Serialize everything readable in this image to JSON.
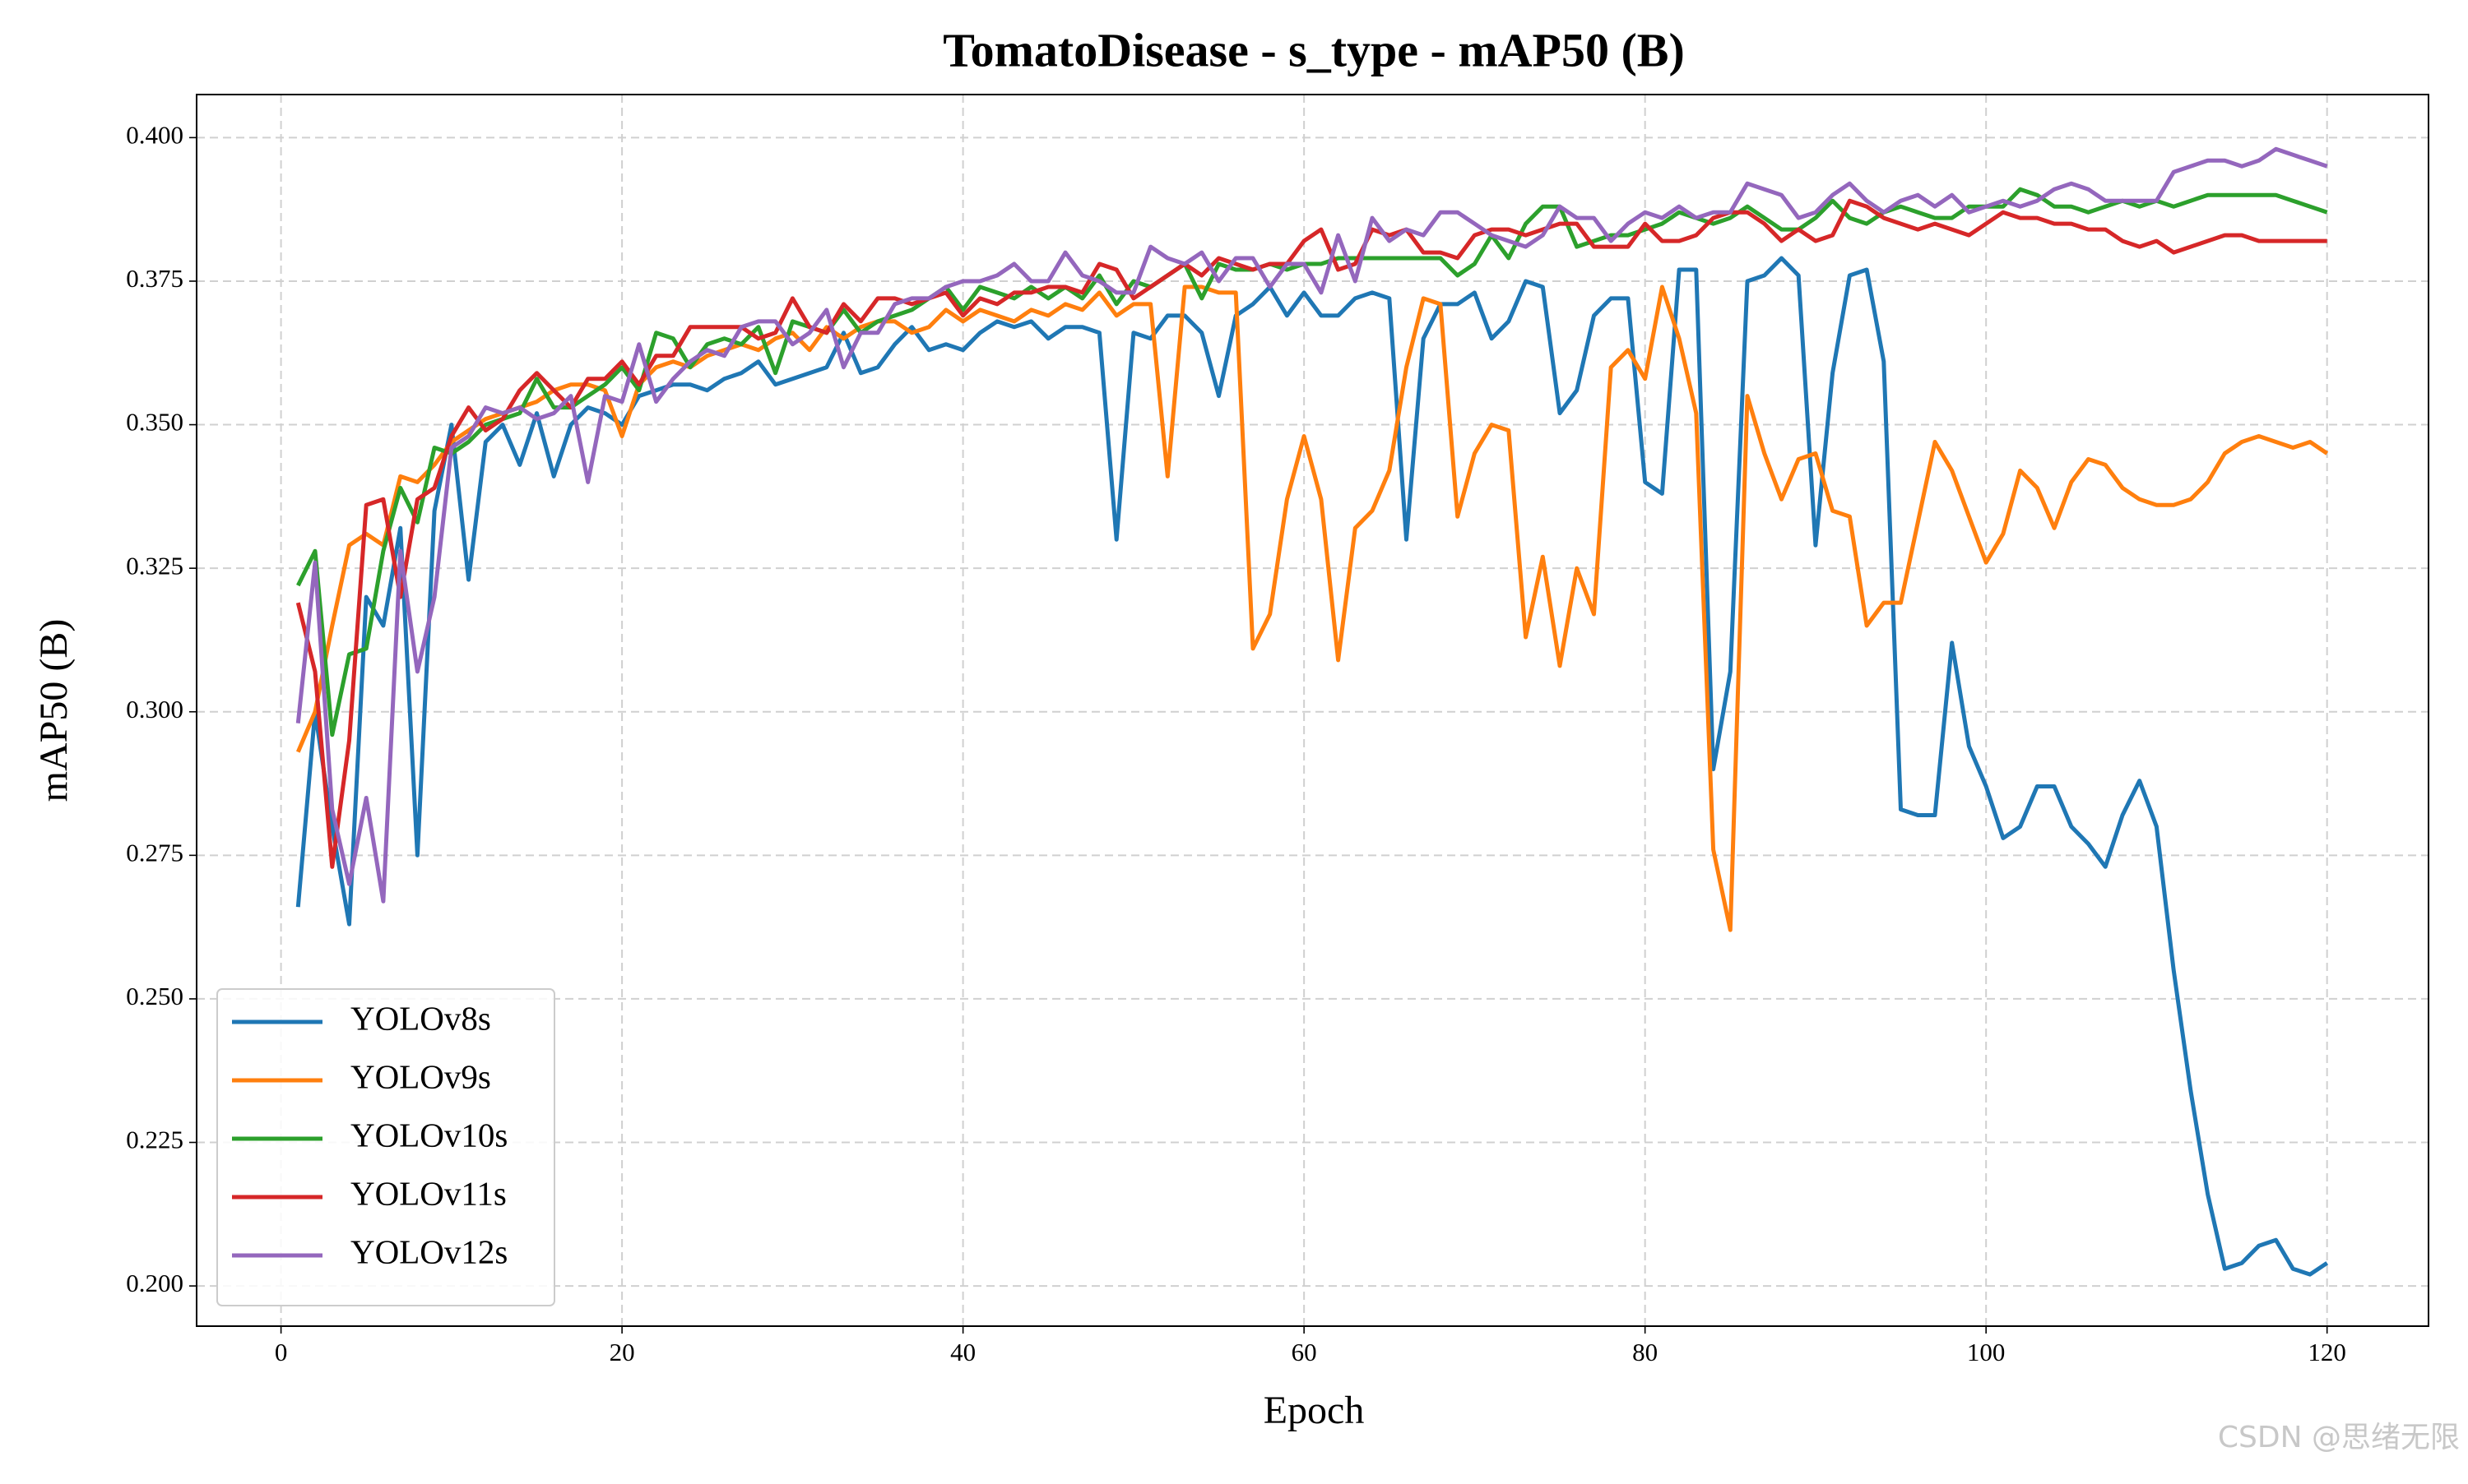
{
  "chart_data": {
    "type": "line",
    "title": "TomatoDisease - s_type - mAP50 (B)",
    "x_label": "Epoch",
    "y_label": "mAP50 (B)",
    "watermark": "CSDN @思绪无限",
    "grid": true,
    "legend": "lower left",
    "xlim": [
      -4.95,
      125.95
    ],
    "ylim": [
      0.193,
      0.4075
    ],
    "xticks": [
      0,
      20,
      40,
      60,
      80,
      100,
      120
    ],
    "yticks": [
      {
        "value": 0.2,
        "label": "0.200"
      },
      {
        "value": 0.225,
        "label": "0.225"
      },
      {
        "value": 0.25,
        "label": "0.250"
      },
      {
        "value": 0.275,
        "label": "0.275"
      },
      {
        "value": 0.3,
        "label": "0.300"
      },
      {
        "value": 0.325,
        "label": "0.325"
      },
      {
        "value": 0.35,
        "label": "0.350"
      },
      {
        "value": 0.375,
        "label": "0.375"
      },
      {
        "value": 0.4,
        "label": "0.400"
      }
    ],
    "x": [
      1,
      2,
      3,
      4,
      5,
      6,
      7,
      8,
      9,
      10,
      11,
      12,
      13,
      14,
      15,
      16,
      17,
      18,
      19,
      20,
      21,
      22,
      23,
      24,
      25,
      26,
      27,
      28,
      29,
      30,
      31,
      32,
      33,
      34,
      35,
      36,
      37,
      38,
      39,
      40,
      41,
      42,
      43,
      44,
      45,
      46,
      47,
      48,
      49,
      50,
      51,
      52,
      53,
      54,
      55,
      56,
      57,
      58,
      59,
      60,
      61,
      62,
      63,
      64,
      65,
      66,
      67,
      68,
      69,
      70,
      71,
      72,
      73,
      74,
      75,
      76,
      77,
      78,
      79,
      80,
      81,
      82,
      83,
      84,
      85,
      86,
      87,
      88,
      89,
      90,
      91,
      92,
      93,
      94,
      95,
      96,
      97,
      98,
      99,
      100,
      101,
      102,
      103,
      104,
      105,
      106,
      107,
      108,
      109,
      110,
      111,
      112,
      113,
      114,
      115,
      116,
      117,
      118,
      119,
      120
    ],
    "series": [
      {
        "name": "YOLOv8s",
        "color": "#1f77b4",
        "values": [
          0.266,
          0.3,
          0.28,
          0.263,
          0.32,
          0.315,
          0.332,
          0.275,
          0.335,
          0.35,
          0.323,
          0.347,
          0.35,
          0.343,
          0.352,
          0.341,
          0.35,
          0.353,
          0.352,
          0.35,
          0.355,
          0.356,
          0.357,
          0.357,
          0.356,
          0.358,
          0.359,
          0.361,
          0.357,
          0.358,
          0.359,
          0.36,
          0.366,
          0.359,
          0.36,
          0.364,
          0.367,
          0.363,
          0.364,
          0.363,
          0.366,
          0.368,
          0.367,
          0.368,
          0.365,
          0.367,
          0.367,
          0.366,
          0.33,
          0.366,
          0.365,
          0.369,
          0.369,
          0.366,
          0.355,
          0.369,
          0.371,
          0.374,
          0.369,
          0.373,
          0.369,
          0.369,
          0.372,
          0.373,
          0.372,
          0.33,
          0.365,
          0.371,
          0.371,
          0.373,
          0.365,
          0.368,
          0.375,
          0.374,
          0.352,
          0.356,
          0.369,
          0.372,
          0.372,
          0.34,
          0.338,
          0.377,
          0.377,
          0.29,
          0.307,
          0.375,
          0.376,
          0.379,
          0.376,
          0.329,
          0.359,
          0.376,
          0.377,
          0.361,
          0.283,
          0.282,
          0.282,
          0.312,
          0.294,
          0.287,
          0.278,
          0.28,
          0.287,
          0.287,
          0.28,
          0.277,
          0.273,
          0.282,
          0.288,
          0.28,
          0.255,
          0.234,
          0.216,
          0.203,
          0.204,
          0.207,
          0.208,
          0.203,
          0.202,
          0.204
        ]
      },
      {
        "name": "YOLOv9s",
        "color": "#ff7f0e",
        "values": [
          0.293,
          0.3,
          0.315,
          0.329,
          0.331,
          0.329,
          0.341,
          0.34,
          0.343,
          0.347,
          0.349,
          0.351,
          0.352,
          0.353,
          0.354,
          0.356,
          0.357,
          0.357,
          0.356,
          0.348,
          0.357,
          0.36,
          0.361,
          0.36,
          0.362,
          0.363,
          0.364,
          0.363,
          0.365,
          0.366,
          0.363,
          0.367,
          0.365,
          0.367,
          0.368,
          0.368,
          0.366,
          0.367,
          0.37,
          0.368,
          0.37,
          0.369,
          0.368,
          0.37,
          0.369,
          0.371,
          0.37,
          0.373,
          0.369,
          0.371,
          0.371,
          0.341,
          0.374,
          0.374,
          0.373,
          0.373,
          0.311,
          0.317,
          0.337,
          0.348,
          0.337,
          0.309,
          0.332,
          0.335,
          0.342,
          0.36,
          0.372,
          0.371,
          0.334,
          0.345,
          0.35,
          0.349,
          0.313,
          0.327,
          0.308,
          0.325,
          0.317,
          0.36,
          0.363,
          0.358,
          0.374,
          0.365,
          0.352,
          0.276,
          0.262,
          0.355,
          0.345,
          0.337,
          0.344,
          0.345,
          0.335,
          0.334,
          0.315,
          0.319,
          0.319,
          0.333,
          0.347,
          0.342,
          0.334,
          0.326,
          0.331,
          0.342,
          0.339,
          0.332,
          0.34,
          0.344,
          0.343,
          0.339,
          0.337,
          0.336,
          0.336,
          0.337,
          0.34,
          0.345,
          0.347,
          0.348,
          0.347,
          0.346,
          0.347,
          0.345
        ]
      },
      {
        "name": "YOLOv10s",
        "color": "#2ca02c",
        "values": [
          0.322,
          0.328,
          0.296,
          0.31,
          0.311,
          0.328,
          0.339,
          0.333,
          0.346,
          0.345,
          0.347,
          0.35,
          0.351,
          0.352,
          0.358,
          0.353,
          0.353,
          0.355,
          0.357,
          0.36,
          0.356,
          0.366,
          0.365,
          0.36,
          0.364,
          0.365,
          0.364,
          0.367,
          0.359,
          0.368,
          0.367,
          0.366,
          0.37,
          0.366,
          0.368,
          0.369,
          0.37,
          0.372,
          0.374,
          0.37,
          0.374,
          0.373,
          0.372,
          0.374,
          0.372,
          0.374,
          0.372,
          0.376,
          0.371,
          0.375,
          0.374,
          0.376,
          0.378,
          0.372,
          0.378,
          0.377,
          0.377,
          0.378,
          0.377,
          0.378,
          0.378,
          0.379,
          0.379,
          0.379,
          0.379,
          0.379,
          0.379,
          0.379,
          0.376,
          0.378,
          0.383,
          0.379,
          0.385,
          0.388,
          0.388,
          0.381,
          0.382,
          0.383,
          0.383,
          0.384,
          0.385,
          0.387,
          0.386,
          0.385,
          0.386,
          0.388,
          0.386,
          0.384,
          0.384,
          0.386,
          0.389,
          0.386,
          0.385,
          0.387,
          0.388,
          0.387,
          0.386,
          0.386,
          0.388,
          0.388,
          0.388,
          0.391,
          0.39,
          0.388,
          0.388,
          0.387,
          0.388,
          0.389,
          0.388,
          0.389,
          0.388,
          0.389,
          0.39,
          0.39,
          0.39,
          0.39,
          0.39,
          0.389,
          0.388,
          0.387
        ]
      },
      {
        "name": "YOLOv11s",
        "color": "#d62728",
        "values": [
          0.319,
          0.307,
          0.273,
          0.295,
          0.336,
          0.337,
          0.32,
          0.337,
          0.339,
          0.348,
          0.353,
          0.349,
          0.351,
          0.356,
          0.359,
          0.356,
          0.353,
          0.358,
          0.358,
          0.361,
          0.357,
          0.362,
          0.362,
          0.367,
          0.367,
          0.367,
          0.367,
          0.365,
          0.366,
          0.372,
          0.367,
          0.366,
          0.371,
          0.368,
          0.372,
          0.372,
          0.371,
          0.372,
          0.373,
          0.369,
          0.372,
          0.371,
          0.373,
          0.373,
          0.374,
          0.374,
          0.373,
          0.378,
          0.377,
          0.372,
          0.374,
          0.376,
          0.378,
          0.376,
          0.379,
          0.378,
          0.377,
          0.378,
          0.378,
          0.382,
          0.384,
          0.377,
          0.378,
          0.384,
          0.383,
          0.384,
          0.38,
          0.38,
          0.379,
          0.383,
          0.384,
          0.384,
          0.383,
          0.384,
          0.385,
          0.385,
          0.381,
          0.381,
          0.381,
          0.385,
          0.382,
          0.382,
          0.383,
          0.386,
          0.387,
          0.387,
          0.385,
          0.382,
          0.384,
          0.382,
          0.383,
          0.389,
          0.388,
          0.386,
          0.385,
          0.384,
          0.385,
          0.384,
          0.383,
          0.385,
          0.387,
          0.386,
          0.386,
          0.385,
          0.385,
          0.384,
          0.384,
          0.382,
          0.381,
          0.382,
          0.38,
          0.381,
          0.382,
          0.383,
          0.383,
          0.382,
          0.382,
          0.382,
          0.382,
          0.382
        ]
      },
      {
        "name": "YOLOv12s",
        "color": "#9467bd",
        "values": [
          0.298,
          0.326,
          0.283,
          0.27,
          0.285,
          0.267,
          0.328,
          0.307,
          0.32,
          0.346,
          0.348,
          0.353,
          0.352,
          0.353,
          0.351,
          0.352,
          0.355,
          0.34,
          0.355,
          0.354,
          0.364,
          0.354,
          0.358,
          0.361,
          0.363,
          0.362,
          0.367,
          0.368,
          0.368,
          0.364,
          0.366,
          0.37,
          0.36,
          0.366,
          0.366,
          0.371,
          0.372,
          0.372,
          0.374,
          0.375,
          0.375,
          0.376,
          0.378,
          0.375,
          0.375,
          0.38,
          0.376,
          0.375,
          0.373,
          0.373,
          0.381,
          0.379,
          0.378,
          0.38,
          0.375,
          0.379,
          0.379,
          0.374,
          0.378,
          0.378,
          0.373,
          0.383,
          0.375,
          0.386,
          0.382,
          0.384,
          0.383,
          0.387,
          0.387,
          0.385,
          0.383,
          0.382,
          0.381,
          0.383,
          0.388,
          0.386,
          0.386,
          0.382,
          0.385,
          0.387,
          0.386,
          0.388,
          0.386,
          0.387,
          0.387,
          0.392,
          0.391,
          0.39,
          0.386,
          0.387,
          0.39,
          0.392,
          0.389,
          0.387,
          0.389,
          0.39,
          0.388,
          0.39,
          0.387,
          0.388,
          0.389,
          0.388,
          0.389,
          0.391,
          0.392,
          0.391,
          0.389,
          0.389,
          0.389,
          0.389,
          0.394,
          0.395,
          0.396,
          0.396,
          0.395,
          0.396,
          0.398,
          0.397,
          0.396,
          0.395
        ]
      }
    ]
  }
}
